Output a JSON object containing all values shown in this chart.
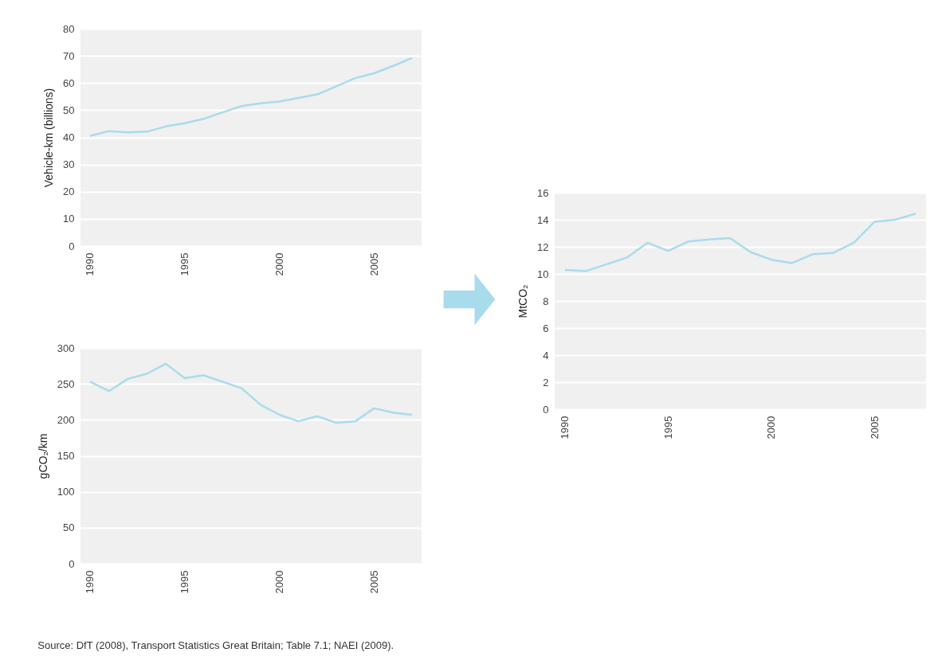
{
  "chart_data": [
    {
      "type": "line",
      "ylabel": "Vehicle-km (billions)",
      "color": "#a8dcec",
      "grid": "y",
      "x": [
        1990,
        1991,
        1992,
        1993,
        1994,
        1995,
        1996,
        1997,
        1998,
        1999,
        2000,
        2001,
        2002,
        2003,
        2004,
        2005,
        2006,
        2007
      ],
      "values": [
        40.5,
        42.3,
        41.8,
        42.1,
        44,
        45.2,
        46.8,
        49.2,
        51.5,
        52.5,
        53.2,
        54.5,
        55.8,
        58.8,
        61.8,
        63.6,
        66.3,
        69.2
      ],
      "xlim": [
        1989.5,
        2007.5
      ],
      "xticks": [
        1990,
        1995,
        2000,
        2005
      ],
      "ylim": [
        0,
        80
      ],
      "yticks": [
        0,
        10,
        20,
        30,
        40,
        50,
        60,
        70,
        80
      ]
    },
    {
      "type": "line",
      "ylabel": "gCO₂/km",
      "color": "#a8dcec",
      "grid": "y",
      "x": [
        1990,
        1991,
        1992,
        1993,
        1994,
        1995,
        1996,
        1997,
        1998,
        1999,
        2000,
        2001,
        2002,
        2003,
        2004,
        2005,
        2006,
        2007
      ],
      "values": [
        253,
        240,
        257,
        264,
        278,
        258,
        262,
        253,
        244,
        221,
        207,
        198,
        205,
        196,
        198,
        216,
        210,
        207
      ],
      "xlim": [
        1989.5,
        2007.5
      ],
      "xticks": [
        1990,
        1995,
        2000,
        2005
      ],
      "ylim": [
        0,
        300
      ],
      "yticks": [
        0,
        50,
        100,
        150,
        200,
        250,
        300
      ]
    },
    {
      "type": "line",
      "ylabel": "MtCO₂",
      "color": "#a8dcec",
      "grid": "y",
      "x": [
        1990,
        1991,
        1992,
        1993,
        1994,
        1995,
        1996,
        1997,
        1998,
        1999,
        2000,
        2001,
        2002,
        2003,
        2004,
        2005,
        2006,
        2007
      ],
      "values": [
        10.3,
        10.2,
        10.7,
        11.2,
        12.3,
        11.7,
        12.4,
        12.55,
        12.65,
        11.6,
        11.05,
        10.8,
        11.45,
        11.55,
        12.3,
        13.85,
        14.0,
        14.45
      ],
      "xlim": [
        1989.5,
        2007.5
      ],
      "xticks": [
        1990,
        1995,
        2000,
        2005
      ],
      "ylim": [
        0,
        16
      ],
      "yticks": [
        0,
        2,
        4,
        6,
        8,
        10,
        12,
        14,
        16
      ],
      "annotations": [
        "Source: DfT (2008), Transport Statistics Great Britain; Table 7.1; NAEI (2009)."
      ]
    }
  ]
}
